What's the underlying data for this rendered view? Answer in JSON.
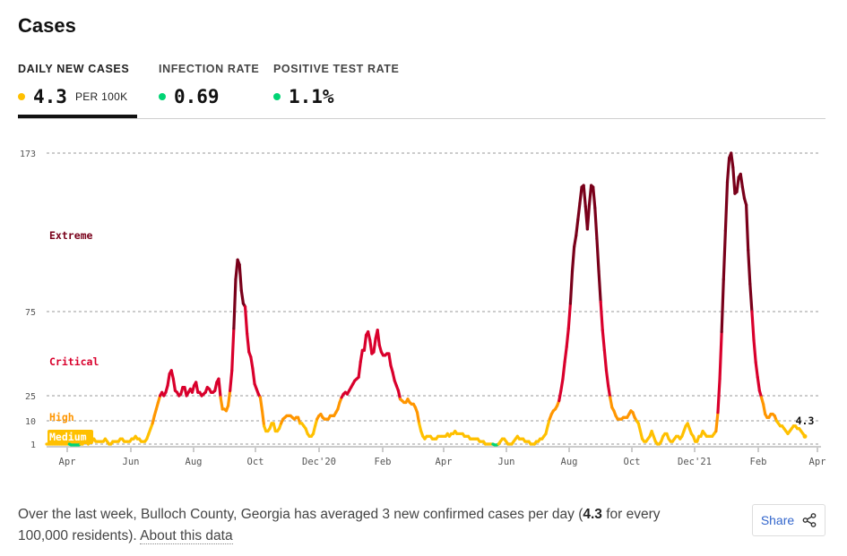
{
  "title": "Cases",
  "tabs": [
    {
      "label": "DAILY NEW CASES",
      "value": "4.3",
      "unit": "PER 100K",
      "dot_color": "#ffc000"
    },
    {
      "label": "INFECTION RATE",
      "value": "0.69",
      "dot_color": "#00d474"
    },
    {
      "label": "POSITIVE TEST RATE",
      "value": "1.1%",
      "dot_color": "#00d474"
    }
  ],
  "footer": {
    "text_before": "Over the last week, Bulloch County, Georgia has averaged 3 new confirmed cases per day (",
    "value": "4.3",
    "text_after": " for every 100,000 residents).",
    "link": "About this data"
  },
  "share_label": "Share",
  "share_icon": "share-icon",
  "chart_data": {
    "type": "line",
    "ylim": [
      0,
      173
    ],
    "y_ticks": [
      1,
      10,
      25,
      75,
      173
    ],
    "x_tick_labels": [
      "Apr",
      "Jun",
      "Aug",
      "Oct",
      "Dec'20",
      "Feb",
      "Apr",
      "Jun",
      "Aug",
      "Oct",
      "Dec'21",
      "Feb",
      "Apr"
    ],
    "risk_levels": [
      {
        "name": "Medium",
        "min": 1,
        "max": 10,
        "color": "#ffc000"
      },
      {
        "name": "High",
        "min": 10,
        "max": 25,
        "color": "#ff9600"
      },
      {
        "name": "Critical",
        "min": 25,
        "max": 75,
        "color": "#d9002c"
      },
      {
        "name": "Extreme",
        "min": 75,
        "max": 173,
        "color": "#79001a"
      }
    ],
    "low_color": "#00d474",
    "last_value_label": "4.3",
    "series": [
      {
        "values": [
          1,
          1,
          1,
          1,
          1,
          1,
          1,
          1,
          1,
          1,
          1,
          1,
          1,
          0.5,
          0.5,
          0.5,
          0.5,
          0.5,
          1,
          1,
          2,
          2,
          1,
          2,
          2,
          3,
          2,
          2,
          2,
          2,
          2,
          3,
          2,
          1,
          1,
          2,
          2,
          2,
          2,
          3,
          3,
          2,
          2,
          2,
          2,
          3,
          3,
          4,
          3,
          3,
          2,
          2,
          2,
          3,
          5,
          7,
          9,
          13,
          17,
          21,
          25,
          27,
          25,
          27,
          31,
          38,
          40,
          35,
          28,
          27,
          25,
          26,
          30,
          30,
          25,
          27,
          29,
          27,
          31,
          33,
          27,
          27,
          25,
          26,
          27,
          30,
          29,
          27,
          27,
          28,
          33,
          35,
          24,
          17,
          17,
          16,
          19,
          28,
          40,
          65,
          95,
          107,
          104,
          88,
          80,
          78,
          62,
          51,
          48,
          41,
          32,
          29,
          26,
          24,
          16,
          8,
          6,
          6,
          7,
          9,
          9,
          6,
          6,
          7,
          9,
          11,
          12,
          13,
          13,
          13,
          12,
          11,
          12,
          12,
          9,
          9,
          8,
          7,
          5,
          4,
          4,
          5,
          8,
          11,
          13,
          14,
          12,
          11,
          11,
          11,
          13,
          13,
          13,
          15,
          17,
          21,
          24,
          26,
          27,
          26,
          28,
          30,
          32,
          34,
          35,
          36,
          45,
          52,
          52,
          61,
          63,
          58,
          50,
          51,
          59,
          64,
          55,
          51,
          49,
          49,
          50,
          50,
          43,
          39,
          34,
          31,
          28,
          23,
          22,
          21,
          21,
          23,
          21,
          20,
          20,
          18,
          15,
          9,
          6,
          4,
          3,
          4,
          4,
          4,
          3,
          3,
          3,
          4,
          4,
          4,
          4,
          4,
          5,
          4,
          5,
          5,
          6,
          5,
          5,
          5,
          5,
          4,
          4,
          4,
          3,
          3,
          3,
          3,
          3,
          2,
          2,
          2,
          1,
          1,
          1,
          1,
          1,
          0.5,
          0.5,
          1,
          2,
          3,
          3,
          2,
          1,
          1,
          1,
          2,
          3,
          4,
          3,
          3,
          3,
          2,
          2,
          2,
          1,
          1,
          1,
          2,
          2,
          3,
          3,
          4,
          5,
          8,
          11,
          14,
          16,
          17,
          19,
          22,
          28,
          35,
          45,
          54,
          65,
          80,
          100,
          115,
          122,
          132,
          142,
          152,
          153,
          140,
          126,
          141,
          153,
          152,
          139,
          120,
          100,
          81,
          64,
          52,
          40,
          31,
          24,
          18,
          16,
          13,
          11,
          11,
          11,
          12,
          12,
          12,
          14,
          16,
          15,
          12,
          10,
          9,
          6,
          3,
          2,
          2,
          3,
          4,
          6,
          4,
          2,
          1,
          1,
          2,
          4,
          5,
          5,
          3,
          2,
          2,
          3,
          4,
          4,
          3,
          4,
          6,
          8,
          9,
          7,
          5,
          4,
          2,
          2,
          4,
          4,
          6,
          5,
          4,
          4,
          4,
          4,
          5,
          6,
          15,
          35,
          63,
          95,
          125,
          155,
          170,
          173,
          164,
          148,
          149,
          158,
          160,
          152,
          145,
          141,
          113,
          92,
          75,
          58,
          45,
          36,
          28,
          24,
          20,
          14,
          12,
          12,
          14,
          14,
          13,
          10,
          9,
          8,
          8,
          7,
          6,
          5,
          6,
          7,
          8,
          8,
          7,
          7,
          6,
          5,
          4
        ]
      }
    ]
  }
}
